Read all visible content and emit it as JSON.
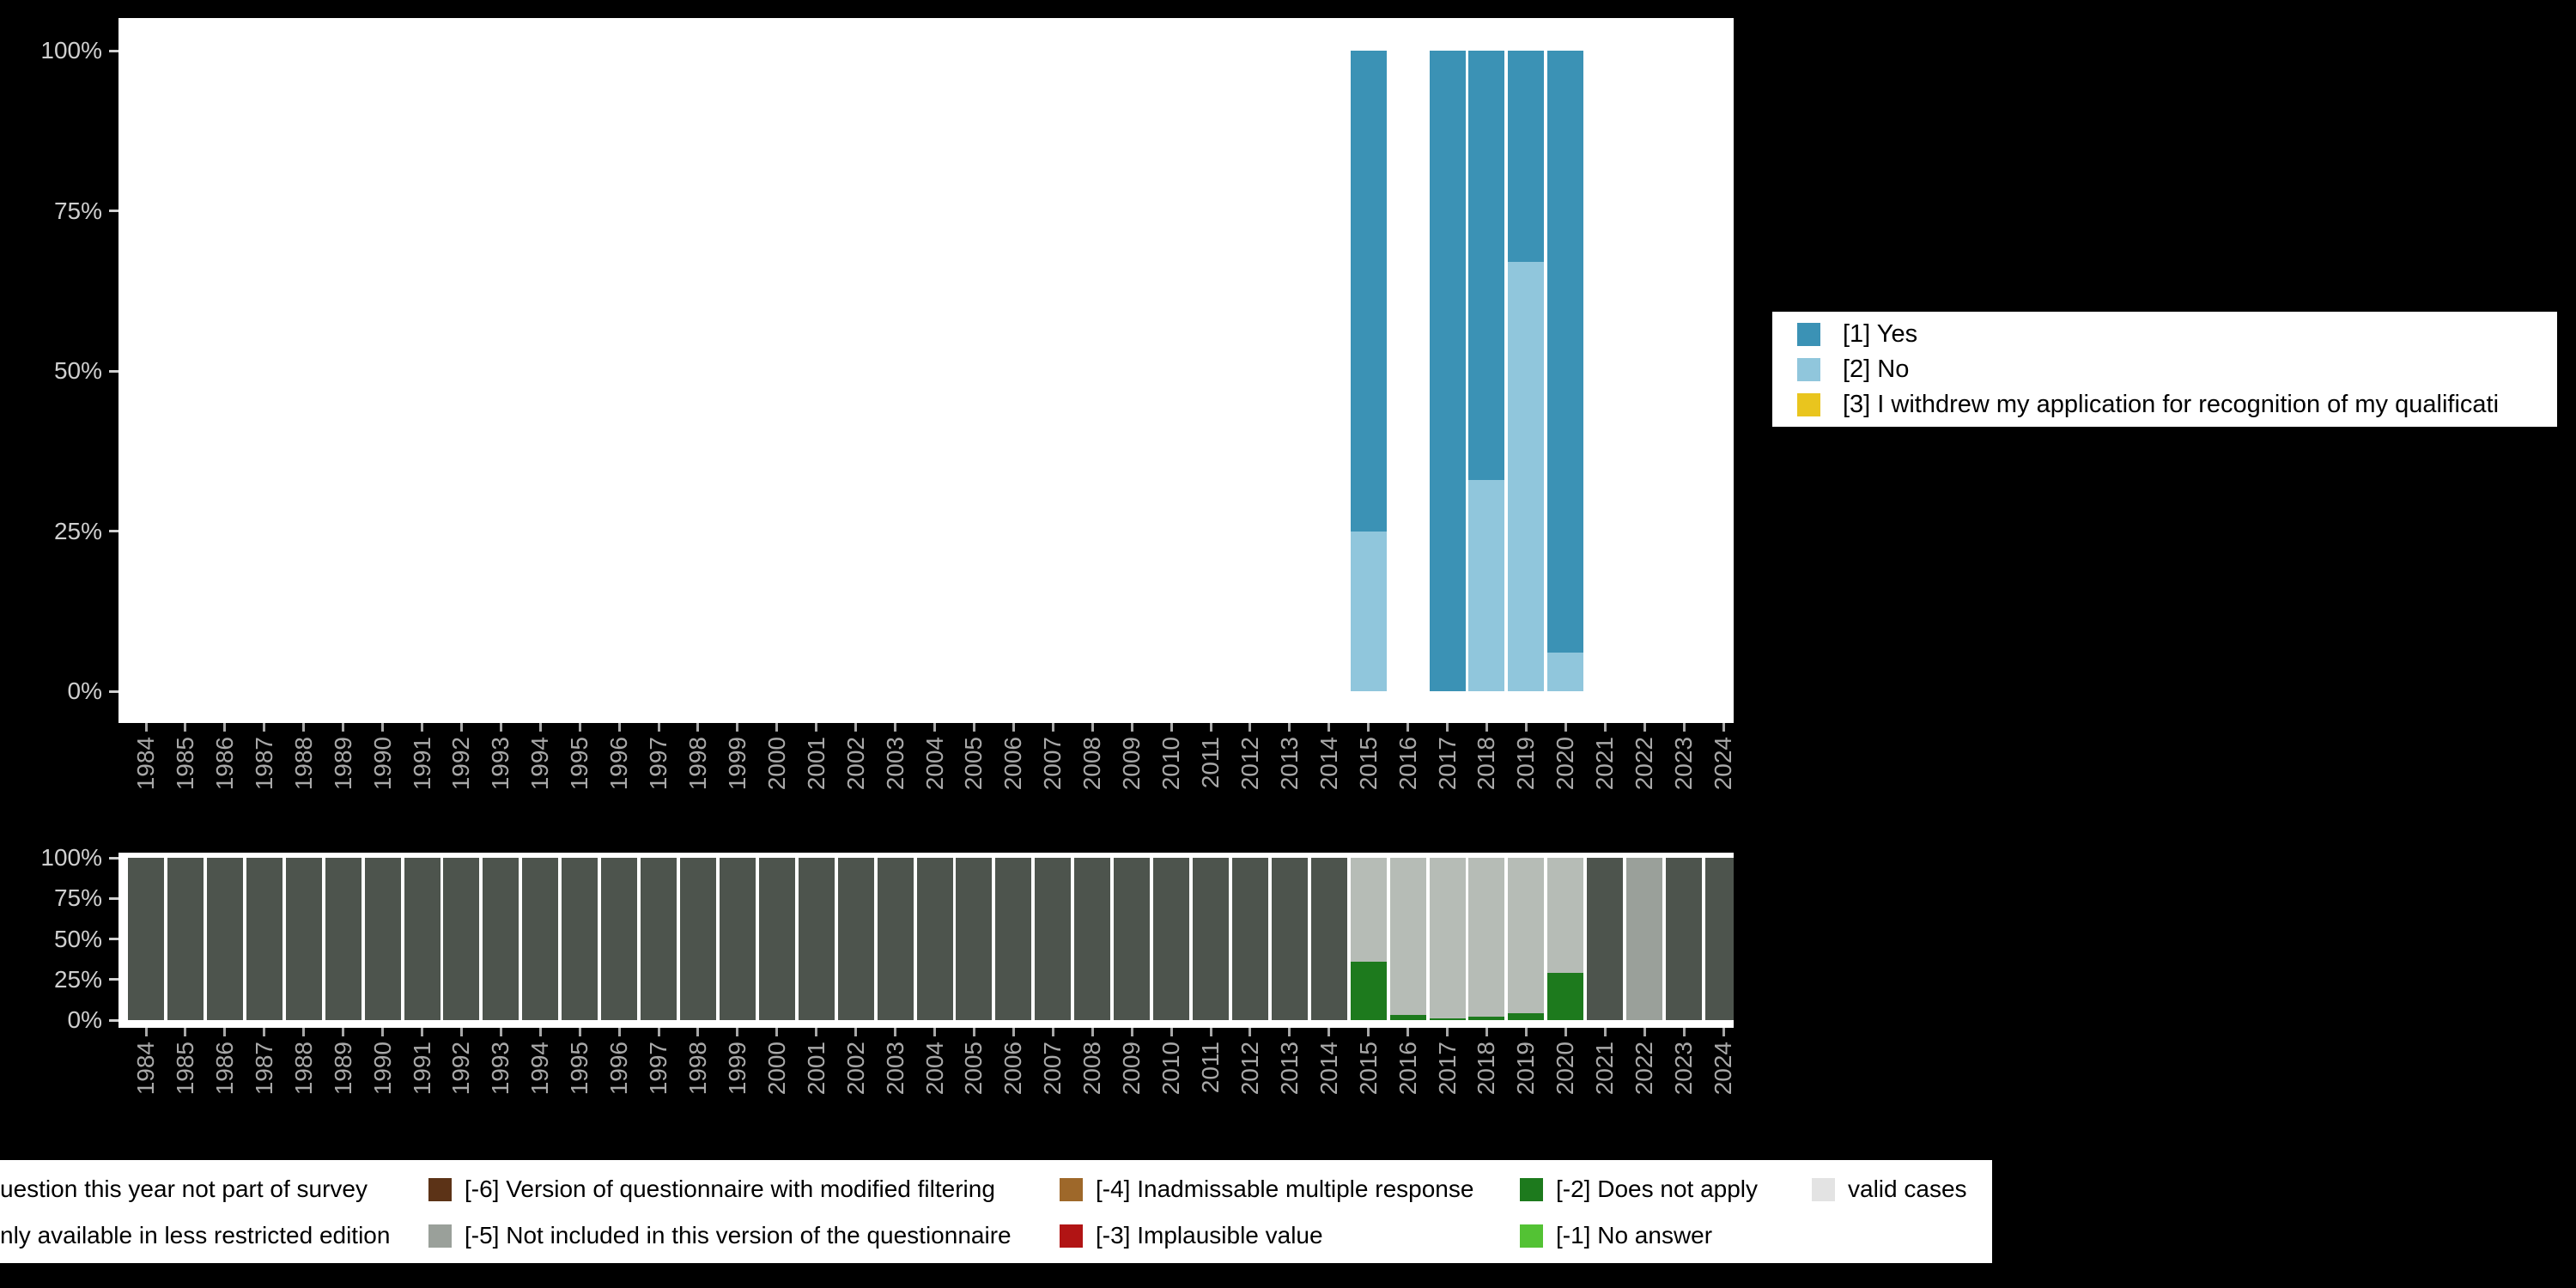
{
  "y_ticks": [
    "100%",
    "75%",
    "50%",
    "25%",
    "0%"
  ],
  "top_legend": {
    "items": [
      {
        "label": "[1] Yes",
        "color": "#3b92b5"
      },
      {
        "label": "[2] No",
        "color": "#90c6dc"
      },
      {
        "label": "[3] I withdrew my application for recognition of my qualificati",
        "color": "#e9c51e"
      }
    ]
  },
  "bottom_legend": {
    "rows": [
      [
        {
          "label": "uestion this year not part of survey",
          "color": "#4d544d"
        },
        {
          "label": "[-6] Version of questionnaire with modified filtering",
          "color": "#5c3317"
        },
        {
          "label": "[-4] Inadmissable multiple response",
          "color": "#9e682a"
        },
        {
          "label": "[-2] Does not apply",
          "color": "#1d7a1d"
        },
        {
          "label": "valid cases",
          "color": "#e3e3e3"
        }
      ],
      [
        {
          "label": "nly available in less restricted edition",
          "color": "#9aa09a"
        },
        {
          "label": "[-5] Not included in this version of the questionnaire",
          "color": "#9aa09a"
        },
        {
          "label": "[-3] Implausible value",
          "color": "#b11414"
        },
        {
          "label": "[-1] No answer",
          "color": "#53c234"
        }
      ]
    ]
  },
  "chart_data": [
    {
      "type": "bar",
      "stacked": true,
      "title": "",
      "xlabel": "",
      "ylabel": "",
      "ylim": [
        0,
        100
      ],
      "yticks": [
        "0%",
        "25%",
        "50%",
        "75%",
        "100%"
      ],
      "legend_position": "right",
      "categories": [
        "1984",
        "1985",
        "1986",
        "1987",
        "1988",
        "1989",
        "1990",
        "1991",
        "1992",
        "1993",
        "1994",
        "1995",
        "1996",
        "1997",
        "1998",
        "1999",
        "2000",
        "2001",
        "2002",
        "2003",
        "2004",
        "2005",
        "2006",
        "2007",
        "2008",
        "2009",
        "2010",
        "2011",
        "2012",
        "2013",
        "2014",
        "2015",
        "2016",
        "2017",
        "2018",
        "2019",
        "2020",
        "2021",
        "2022",
        "2023",
        "2024"
      ],
      "series": [
        {
          "name": "[2] No",
          "color": "#90c6dc",
          "values": [
            0,
            0,
            0,
            0,
            0,
            0,
            0,
            0,
            0,
            0,
            0,
            0,
            0,
            0,
            0,
            0,
            0,
            0,
            0,
            0,
            0,
            0,
            0,
            0,
            0,
            0,
            0,
            0,
            0,
            0,
            0,
            25,
            0,
            0,
            33,
            67,
            6,
            0,
            0,
            0,
            0
          ]
        },
        {
          "name": "[1] Yes",
          "color": "#3b92b5",
          "values": [
            0,
            0,
            0,
            0,
            0,
            0,
            0,
            0,
            0,
            0,
            0,
            0,
            0,
            0,
            0,
            0,
            0,
            0,
            0,
            0,
            0,
            0,
            0,
            0,
            0,
            0,
            0,
            0,
            0,
            0,
            0,
            75,
            0,
            100,
            67,
            33,
            94,
            0,
            0,
            0,
            0
          ]
        },
        {
          "name": "[3] I withdrew my application for recognition of my qualificati",
          "color": "#e9c51e",
          "values": [
            0,
            0,
            0,
            0,
            0,
            0,
            0,
            0,
            0,
            0,
            0,
            0,
            0,
            0,
            0,
            0,
            0,
            0,
            0,
            0,
            0,
            0,
            0,
            0,
            0,
            0,
            0,
            0,
            0,
            0,
            0,
            0,
            0,
            0,
            0,
            0,
            0,
            0,
            0,
            0,
            0
          ]
        }
      ]
    },
    {
      "type": "bar",
      "stacked": true,
      "title": "",
      "xlabel": "",
      "ylabel": "",
      "ylim": [
        0,
        100
      ],
      "yticks": [
        "0%",
        "25%",
        "50%",
        "75%",
        "100%"
      ],
      "legend_position": "bottom",
      "categories": [
        "1984",
        "1985",
        "1986",
        "1987",
        "1988",
        "1989",
        "1990",
        "1991",
        "1992",
        "1993",
        "1994",
        "1995",
        "1996",
        "1997",
        "1998",
        "1999",
        "2000",
        "2001",
        "2002",
        "2003",
        "2004",
        "2005",
        "2006",
        "2007",
        "2008",
        "2009",
        "2010",
        "2011",
        "2012",
        "2013",
        "2014",
        "2015",
        "2016",
        "2017",
        "2018",
        "2019",
        "2020",
        "2021",
        "2022",
        "2023",
        "2024"
      ],
      "series": [
        {
          "name": "uestion this year not part of survey",
          "color": "#4d544d",
          "values": [
            100,
            100,
            100,
            100,
            100,
            100,
            100,
            100,
            100,
            100,
            100,
            100,
            100,
            100,
            100,
            100,
            100,
            100,
            100,
            100,
            100,
            100,
            100,
            100,
            100,
            100,
            100,
            100,
            100,
            100,
            100,
            0,
            0,
            0,
            0,
            0,
            0,
            100,
            0,
            100,
            100
          ]
        },
        {
          "name": "[-2] Does not apply",
          "color": "#1d7a1d",
          "values": [
            0,
            0,
            0,
            0,
            0,
            0,
            0,
            0,
            0,
            0,
            0,
            0,
            0,
            0,
            0,
            0,
            0,
            0,
            0,
            0,
            0,
            0,
            0,
            0,
            0,
            0,
            0,
            0,
            0,
            0,
            0,
            36,
            3,
            1,
            2,
            4,
            29,
            0,
            0,
            0,
            0
          ]
        },
        {
          "name": "valid cases",
          "color": "#b6bcb6",
          "values": [
            0,
            0,
            0,
            0,
            0,
            0,
            0,
            0,
            0,
            0,
            0,
            0,
            0,
            0,
            0,
            0,
            0,
            0,
            0,
            0,
            0,
            0,
            0,
            0,
            0,
            0,
            0,
            0,
            0,
            0,
            0,
            64,
            97,
            99,
            98,
            96,
            71,
            0,
            0,
            0,
            0
          ]
        },
        {
          "name": "[-5] Not included in this version of the questionnaire",
          "color": "#9aa09a",
          "values": [
            0,
            0,
            0,
            0,
            0,
            0,
            0,
            0,
            0,
            0,
            0,
            0,
            0,
            0,
            0,
            0,
            0,
            0,
            0,
            0,
            0,
            0,
            0,
            0,
            0,
            0,
            0,
            0,
            0,
            0,
            0,
            0,
            0,
            0,
            0,
            0,
            0,
            0,
            100,
            0,
            0
          ]
        }
      ]
    }
  ]
}
